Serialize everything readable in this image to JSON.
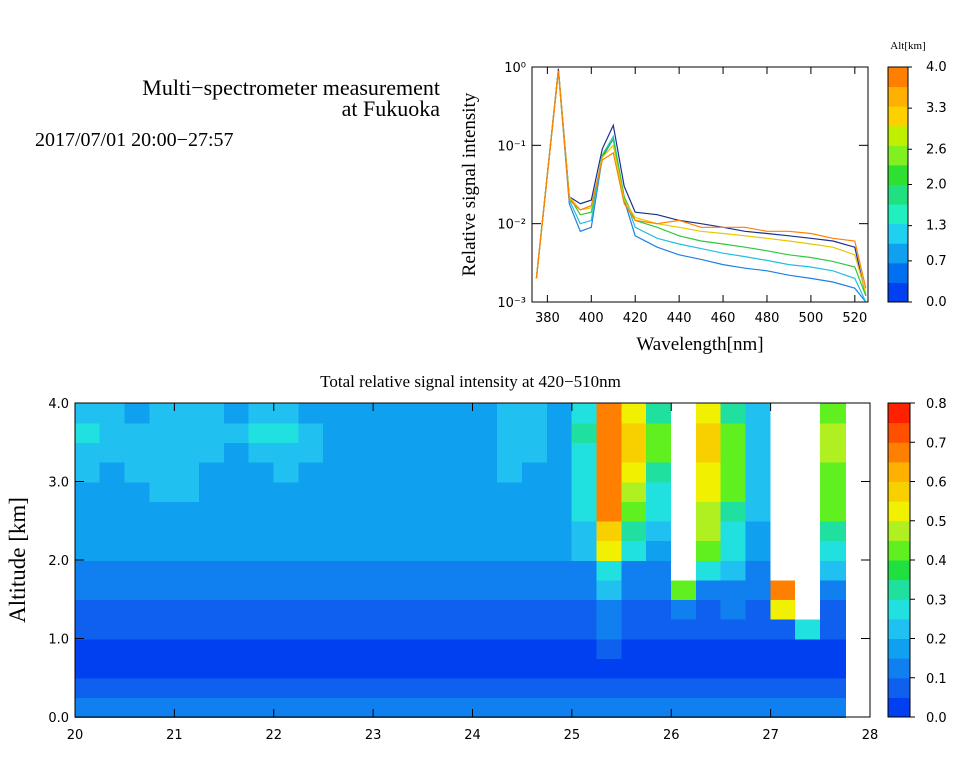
{
  "header": {
    "title_line1": "Multi−spectrometer measurement",
    "title_line2": "at Fukuoka",
    "date": "2017/07/01 20:00−27:57"
  },
  "chart_data": [
    {
      "type": "line",
      "xlabel": "Wavelength[nm]",
      "ylabel": "Relative signal intensity",
      "log_y": true,
      "x": [
        375,
        385,
        390,
        395,
        400,
        405,
        410,
        415,
        420,
        430,
        440,
        450,
        460,
        470,
        480,
        490,
        500,
        510,
        520,
        525
      ],
      "series": [
        {
          "color": "#1a2f8f",
          "values": [
            0.002,
            0.95,
            0.022,
            0.018,
            0.02,
            0.09,
            0.18,
            0.03,
            0.014,
            0.013,
            0.011,
            0.01,
            0.009,
            0.008,
            0.0075,
            0.007,
            0.0065,
            0.006,
            0.005,
            0.0012
          ]
        },
        {
          "color": "#2080e0",
          "values": [
            0.002,
            0.9,
            0.018,
            0.008,
            0.009,
            0.07,
            0.12,
            0.02,
            0.007,
            0.005,
            0.004,
            0.0035,
            0.003,
            0.0027,
            0.0025,
            0.0022,
            0.002,
            0.0018,
            0.0015,
            0.001
          ]
        },
        {
          "color": "#20c0e0",
          "values": [
            0.002,
            0.9,
            0.02,
            0.01,
            0.011,
            0.075,
            0.13,
            0.022,
            0.009,
            0.0065,
            0.0055,
            0.0048,
            0.0042,
            0.0038,
            0.0034,
            0.003,
            0.0028,
            0.0025,
            0.002,
            0.001
          ]
        },
        {
          "color": "#30c840",
          "values": [
            0.002,
            0.9,
            0.022,
            0.013,
            0.014,
            0.075,
            0.12,
            0.022,
            0.011,
            0.009,
            0.007,
            0.006,
            0.0055,
            0.005,
            0.0045,
            0.004,
            0.0037,
            0.0033,
            0.0028,
            0.0012
          ]
        },
        {
          "color": "#e8c800",
          "values": [
            0.002,
            0.9,
            0.022,
            0.015,
            0.016,
            0.07,
            0.1,
            0.02,
            0.012,
            0.01,
            0.009,
            0.008,
            0.0075,
            0.007,
            0.0065,
            0.006,
            0.0055,
            0.005,
            0.004,
            0.0013
          ]
        },
        {
          "color": "#ff8000",
          "values": [
            0.002,
            0.9,
            0.02,
            0.015,
            0.017,
            0.065,
            0.08,
            0.018,
            0.011,
            0.01,
            0.011,
            0.009,
            0.009,
            0.009,
            0.008,
            0.008,
            0.0075,
            0.0065,
            0.006,
            0.0015
          ]
        }
      ],
      "xlim": [
        373,
        526
      ],
      "xticks": [
        380,
        400,
        420,
        440,
        460,
        480,
        500,
        520
      ],
      "ylim": [
        0.001,
        1
      ],
      "yticks": [
        {
          "value": 0.001,
          "label": "10⁻³"
        },
        {
          "value": 0.01,
          "label": "10⁻²"
        },
        {
          "value": 0.1,
          "label": "10⁻¹"
        },
        {
          "value": 1,
          "label": "10⁰"
        }
      ],
      "colorbar": {
        "title": "Alt[km]",
        "lim": [
          0,
          4
        ],
        "colors": [
          "#0040f0",
          "#0070f0",
          "#10a0f0",
          "#20d0f0",
          "#20f0c0",
          "#20e080",
          "#30e030",
          "#80f020",
          "#c0f000",
          "#ffd000",
          "#ffb000",
          "#ff8000"
        ],
        "ticks": [
          {
            "value": 0,
            "label": "0.0"
          },
          {
            "value": 0.7,
            "label": "0.7"
          },
          {
            "value": 1.3,
            "label": "1.3"
          },
          {
            "value": 2,
            "label": "2.0"
          },
          {
            "value": 2.6,
            "label": "2.6"
          },
          {
            "value": 3.3,
            "label": "3.3"
          },
          {
            "value": 4,
            "label": "4.0"
          }
        ]
      }
    },
    {
      "type": "heatmap",
      "title": "Total relative signal intensity at 420−510nm",
      "ylabel": "Altitude [km]",
      "x": [
        20.125,
        20.375,
        20.625,
        20.875,
        21.125,
        21.375,
        21.625,
        21.875,
        22.125,
        22.375,
        22.625,
        22.875,
        23.125,
        23.375,
        23.625,
        23.875,
        24.125,
        24.375,
        24.625,
        24.875,
        25.125,
        25.375,
        25.625,
        25.875,
        26.125,
        26.375,
        26.625,
        26.875,
        27.125,
        27.375,
        27.625
      ],
      "y": [
        0.125,
        0.375,
        0.625,
        0.875,
        1.125,
        1.375,
        1.625,
        1.875,
        2.125,
        2.375,
        2.625,
        2.875,
        3.125,
        3.375,
        3.625,
        3.875
      ],
      "z": [
        [
          0.15,
          0.15,
          0.15,
          0.15,
          0.15,
          0.15,
          0.15,
          0.15,
          0.15,
          0.15,
          0.15,
          0.15,
          0.15,
          0.15,
          0.15,
          0.15,
          0.15,
          0.15,
          0.15,
          0.15,
          0.15,
          0.15,
          0.15,
          0.15,
          0.15,
          0.15,
          0.15,
          0.15,
          0.15,
          0.15,
          0.15
        ],
        [
          0.06,
          0.06,
          0.06,
          0.06,
          0.06,
          0.06,
          0.06,
          0.06,
          0.06,
          0.06,
          0.06,
          0.06,
          0.06,
          0.06,
          0.06,
          0.06,
          0.06,
          0.06,
          0.06,
          0.06,
          0.06,
          0.06,
          0.06,
          0.06,
          0.06,
          0.06,
          0.06,
          0.06,
          0.06,
          0.06,
          0.06
        ],
        [
          0.04,
          0.04,
          0.04,
          0.04,
          0.04,
          0.04,
          0.04,
          0.04,
          0.04,
          0.04,
          0.04,
          0.04,
          0.04,
          0.04,
          0.04,
          0.04,
          0.04,
          0.04,
          0.04,
          0.04,
          0.04,
          0.04,
          0.04,
          0.04,
          0.04,
          0.04,
          0.04,
          0.04,
          0.04,
          0.04,
          0.04
        ],
        [
          0.04,
          0.04,
          0.04,
          0.04,
          0.04,
          0.04,
          0.04,
          0.04,
          0.04,
          0.04,
          0.04,
          0.04,
          0.04,
          0.04,
          0.04,
          0.04,
          0.04,
          0.04,
          0.04,
          0.04,
          0.04,
          0.08,
          0.04,
          0.04,
          0.04,
          0.04,
          0.04,
          0.04,
          0.04,
          0.04,
          0.04
        ],
        [
          0.05,
          0.05,
          0.05,
          0.05,
          0.05,
          0.05,
          0.05,
          0.05,
          0.05,
          0.05,
          0.05,
          0.05,
          0.05,
          0.05,
          0.05,
          0.05,
          0.05,
          0.05,
          0.05,
          0.05,
          0.05,
          0.1,
          0.05,
          0.05,
          0.05,
          0.05,
          0.05,
          0.05,
          0.05,
          0.3,
          0.05
        ],
        [
          0.08,
          0.08,
          0.08,
          0.08,
          0.08,
          0.08,
          0.08,
          0.08,
          0.08,
          0.08,
          0.08,
          0.08,
          0.08,
          0.08,
          0.08,
          0.08,
          0.08,
          0.08,
          0.08,
          0.08,
          0.08,
          0.12,
          0.08,
          0.08,
          0.12,
          0.08,
          0.1,
          0.08,
          0.5,
          0.9,
          0.08
        ],
        [
          0.1,
          0.1,
          0.1,
          0.1,
          0.1,
          0.1,
          0.1,
          0.1,
          0.1,
          0.1,
          0.1,
          0.1,
          0.1,
          0.1,
          0.1,
          0.1,
          0.1,
          0.1,
          0.1,
          0.1,
          0.1,
          0.2,
          0.1,
          0.1,
          0.4,
          0.15,
          0.12,
          0.1,
          0.7,
          0.9,
          0.12
        ],
        [
          0.13,
          0.13,
          0.13,
          0.13,
          0.13,
          0.13,
          0.13,
          0.13,
          0.13,
          0.13,
          0.13,
          0.13,
          0.13,
          0.13,
          0.13,
          0.13,
          0.13,
          0.13,
          0.13,
          0.13,
          0.13,
          0.3,
          0.15,
          0.13,
          0.9,
          0.3,
          0.2,
          0.13,
          0.9,
          0.9,
          0.2
        ],
        [
          0.16,
          0.16,
          0.16,
          0.16,
          0.16,
          0.16,
          0.16,
          0.16,
          0.16,
          0.16,
          0.16,
          0.16,
          0.16,
          0.16,
          0.16,
          0.16,
          0.16,
          0.16,
          0.16,
          0.16,
          0.2,
          0.5,
          0.3,
          0.18,
          0.9,
          0.4,
          0.25,
          0.16,
          0.9,
          0.9,
          0.3
        ],
        [
          0.17,
          0.17,
          0.17,
          0.17,
          0.17,
          0.17,
          0.17,
          0.17,
          0.17,
          0.17,
          0.17,
          0.17,
          0.17,
          0.17,
          0.17,
          0.17,
          0.17,
          0.17,
          0.17,
          0.17,
          0.22,
          0.6,
          0.35,
          0.2,
          0.9,
          0.45,
          0.3,
          0.18,
          0.9,
          0.9,
          0.35
        ],
        [
          0.17,
          0.17,
          0.17,
          0.17,
          0.17,
          0.17,
          0.17,
          0.17,
          0.17,
          0.17,
          0.17,
          0.17,
          0.17,
          0.17,
          0.17,
          0.17,
          0.17,
          0.17,
          0.17,
          0.17,
          0.25,
          0.65,
          0.4,
          0.25,
          0.9,
          0.45,
          0.35,
          0.2,
          0.9,
          0.9,
          0.4
        ],
        [
          0.18,
          0.17,
          0.18,
          0.22,
          0.22,
          0.18,
          0.17,
          0.17,
          0.18,
          0.17,
          0.16,
          0.17,
          0.17,
          0.18,
          0.17,
          0.17,
          0.18,
          0.19,
          0.18,
          0.17,
          0.25,
          0.7,
          0.45,
          0.3,
          0.9,
          0.5,
          0.4,
          0.2,
          0.9,
          0.9,
          0.4
        ],
        [
          0.2,
          0.18,
          0.2,
          0.24,
          0.22,
          0.18,
          0.17,
          0.18,
          0.2,
          0.18,
          0.17,
          0.18,
          0.18,
          0.17,
          0.17,
          0.18,
          0.18,
          0.2,
          0.19,
          0.18,
          0.3,
          0.7,
          0.5,
          0.35,
          0.9,
          0.5,
          0.4,
          0.22,
          0.9,
          0.9,
          0.4
        ],
        [
          0.22,
          0.2,
          0.2,
          0.22,
          0.2,
          0.2,
          0.18,
          0.22,
          0.24,
          0.2,
          0.18,
          0.17,
          0.18,
          0.17,
          0.16,
          0.18,
          0.18,
          0.22,
          0.2,
          0.18,
          0.3,
          0.7,
          0.55,
          0.4,
          0.9,
          0.55,
          0.4,
          0.22,
          0.9,
          0.9,
          0.45
        ],
        [
          0.26,
          0.2,
          0.2,
          0.2,
          0.22,
          0.2,
          0.2,
          0.25,
          0.26,
          0.2,
          0.18,
          0.18,
          0.17,
          0.16,
          0.16,
          0.18,
          0.18,
          0.2,
          0.2,
          0.18,
          0.35,
          0.7,
          0.55,
          0.4,
          0.9,
          0.55,
          0.4,
          0.22,
          0.9,
          0.9,
          0.45
        ],
        [
          0.2,
          0.2,
          0.18,
          0.2,
          0.2,
          0.2,
          0.18,
          0.22,
          0.22,
          0.18,
          0.17,
          0.18,
          0.17,
          0.16,
          0.16,
          0.17,
          0.18,
          0.2,
          0.2,
          0.18,
          0.3,
          0.65,
          0.5,
          0.35,
          0.9,
          0.5,
          0.35,
          0.2,
          0.9,
          0.9,
          0.4
        ]
      ],
      "xlim": [
        20,
        28
      ],
      "xticks": [
        20,
        21,
        22,
        23,
        24,
        25,
        26,
        27,
        28
      ],
      "ylim": [
        0,
        4
      ],
      "yticks": [
        {
          "value": 0,
          "label": "0.0"
        },
        {
          "value": 1,
          "label": "1.0"
        },
        {
          "value": 2,
          "label": "2.0"
        },
        {
          "value": 3,
          "label": "3.0"
        },
        {
          "value": 4,
          "label": "4.0"
        }
      ],
      "zlim": [
        0,
        0.8
      ],
      "over_color": "#ffffff",
      "colors": [
        "#0040f0",
        "#1060f0",
        "#1080f0",
        "#10a0f0",
        "#20c0f0",
        "#20e0e0",
        "#20e0a0",
        "#20e040",
        "#60f020",
        "#b0f020",
        "#f0f000",
        "#f8d000",
        "#ffb000",
        "#ff8000",
        "#ff5000",
        "#ff2000"
      ],
      "zticks": [
        {
          "value": 0,
          "label": "0.0"
        },
        0.1,
        0.2,
        0.3,
        0.4,
        0.5,
        0.6,
        0.7,
        {
          "value": 0.8,
          "label": "0.8"
        }
      ]
    }
  ]
}
